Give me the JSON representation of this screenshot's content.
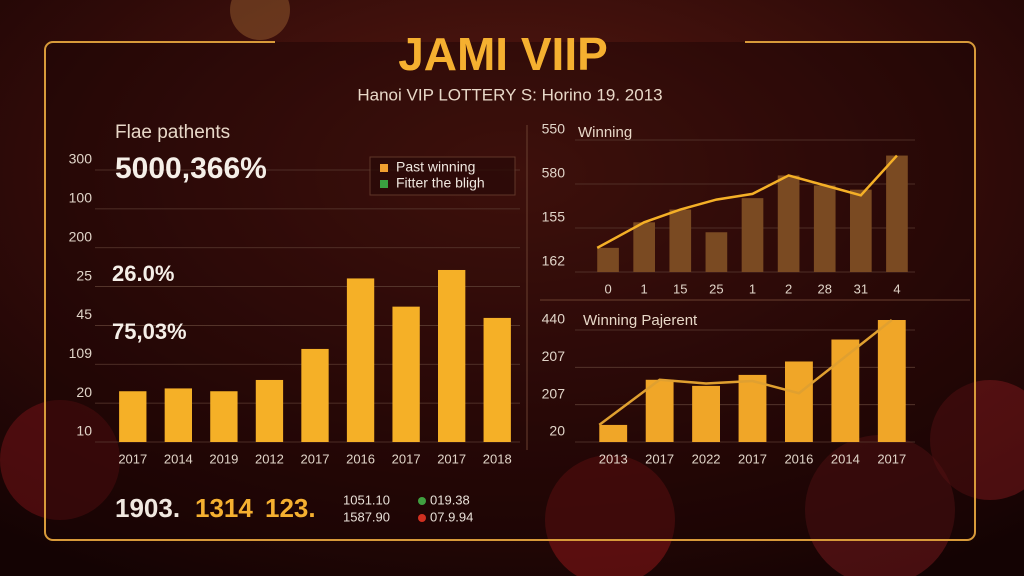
{
  "header": {
    "title": "JAMI  VIIP",
    "subtitle": "Hanoi VIP LOTTERY S: Horino 19. 2013"
  },
  "stats": {
    "big": [
      "1903.",
      "1314",
      "123."
    ],
    "small_left": [
      "1051.10",
      "1587.90"
    ],
    "small_right": [
      "019.38",
      "07.9.94"
    ]
  },
  "chart_data": [
    {
      "type": "bar",
      "title": "Flae pathents",
      "headline": "5000,366%",
      "annotations": [
        "26.0%",
        "75,03%"
      ],
      "legend_items": [
        {
          "name": "Past winning",
          "color": "#f0a030"
        },
        {
          "name": "Fitter the bligh",
          "color": "#3aa040"
        }
      ],
      "y_labels": [
        "300",
        "100",
        "200",
        "25",
        "45",
        "109",
        "20",
        "10"
      ],
      "categories": [
        "2017",
        "2014",
        "2019",
        "2012",
        "2017",
        "2016",
        "2017",
        "2017",
        "2018"
      ],
      "values": [
        18,
        19,
        18,
        22,
        33,
        58,
        48,
        61,
        44
      ],
      "color": "#f5b027",
      "ylim": [
        0,
        100
      ]
    },
    {
      "type": "combo",
      "title": "Winning",
      "y_labels": [
        "550",
        "580",
        "155",
        "162"
      ],
      "categories": [
        "0",
        "1",
        "15",
        "25",
        "1",
        "2",
        "28",
        "31",
        "4"
      ],
      "series": [
        {
          "color": "#7a4a22",
          "values": [
            17,
            35,
            44,
            28,
            52,
            68,
            61,
            58,
            82
          ]
        },
        {
          "color": "#f5b027",
          "values": [
            17,
            35,
            44,
            51,
            55,
            68,
            61,
            54,
            82
          ]
        }
      ],
      "ylim": [
        0,
        100
      ]
    },
    {
      "type": "combo",
      "title": "Winning Pajerent",
      "y_labels": [
        "440",
        "207",
        "207",
        "20"
      ],
      "categories": [
        "2013",
        "2017",
        "2022",
        "2017",
        "2016",
        "2014",
        "2017"
      ],
      "series": [
        {
          "color": "#f0a628",
          "values": [
            14,
            51,
            46,
            55,
            66,
            84,
            100
          ]
        },
        {
          "color": "#e0a030",
          "values": [
            14,
            51,
            48,
            50,
            40,
            70,
            100
          ]
        }
      ],
      "ylim": [
        0,
        100
      ]
    }
  ]
}
